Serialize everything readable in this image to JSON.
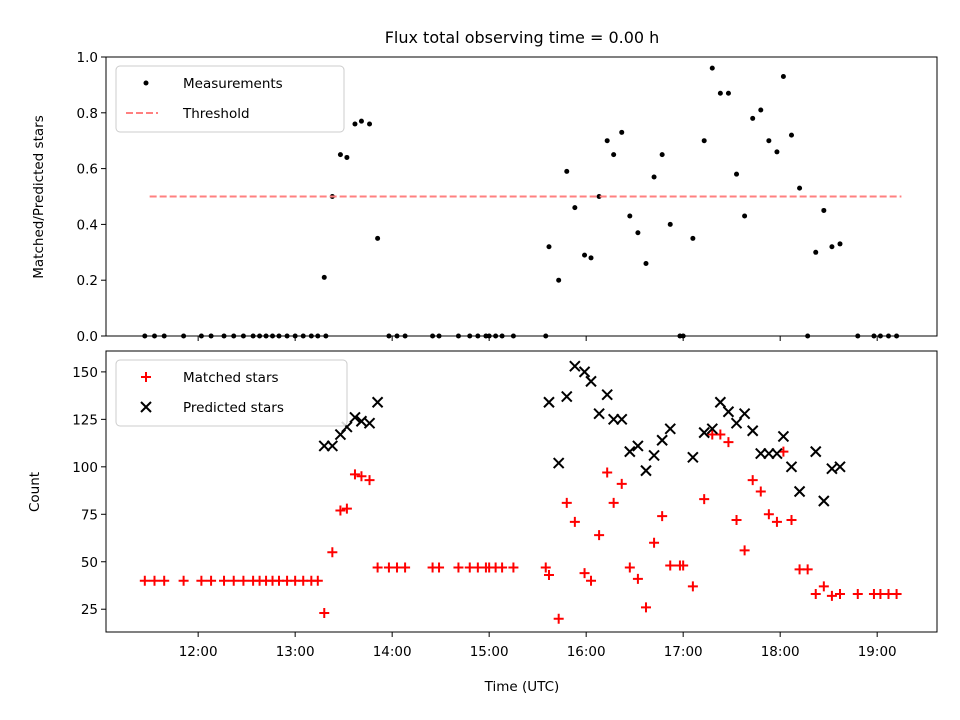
{
  "chart_data": [
    {
      "type": "scatter",
      "title": "Flux total observing time = 0.00 h",
      "xlabel": "",
      "ylabel": "Matched/Predicted stars",
      "xlim": [
        "11:03",
        "19:37"
      ],
      "ylim": [
        0,
        1.0
      ],
      "yticks": [
        0.0,
        0.2,
        0.4,
        0.6,
        0.8,
        1.0
      ],
      "ytick_labels": [
        "0.0",
        "0.2",
        "0.4",
        "0.6",
        "0.8",
        "1.0"
      ],
      "legend_position": "upper-left",
      "series": [
        {
          "name": "Measurements",
          "marker": "dot",
          "color": "#000000",
          "points": [
            [
              "11:27",
              0
            ],
            [
              "11:33",
              0
            ],
            [
              "11:39",
              0
            ],
            [
              "11:51",
              0
            ],
            [
              "12:02",
              0
            ],
            [
              "12:08",
              0
            ],
            [
              "12:16",
              0
            ],
            [
              "12:22",
              0
            ],
            [
              "12:28",
              0
            ],
            [
              "12:34",
              0
            ],
            [
              "12:38",
              0
            ],
            [
              "12:42",
              0
            ],
            [
              "12:46",
              0
            ],
            [
              "12:50",
              0
            ],
            [
              "12:55",
              0
            ],
            [
              "13:00",
              0
            ],
            [
              "13:05",
              0
            ],
            [
              "13:10",
              0
            ],
            [
              "13:14",
              0
            ],
            [
              "13:19",
              0
            ],
            [
              "13:18",
              0.21
            ],
            [
              "13:23",
              0.5
            ],
            [
              "13:28",
              0.65
            ],
            [
              "13:32",
              0.64
            ],
            [
              "13:37",
              0.76
            ],
            [
              "13:41",
              0.77
            ],
            [
              "13:46",
              0.76
            ],
            [
              "13:51",
              0.35
            ],
            [
              "13:58",
              0
            ],
            [
              "14:03",
              0
            ],
            [
              "14:08",
              0
            ],
            [
              "14:25",
              0
            ],
            [
              "14:29",
              0
            ],
            [
              "14:41",
              0
            ],
            [
              "14:48",
              0
            ],
            [
              "14:53",
              0
            ],
            [
              "14:58",
              0
            ],
            [
              "15:00",
              0
            ],
            [
              "15:04",
              0
            ],
            [
              "15:08",
              0
            ],
            [
              "15:15",
              0
            ],
            [
              "15:35",
              0
            ],
            [
              "15:37",
              0.32
            ],
            [
              "15:43",
              0.2
            ],
            [
              "15:48",
              0.59
            ],
            [
              "15:53",
              0.46
            ],
            [
              "15:59",
              0.29
            ],
            [
              "16:03",
              0.28
            ],
            [
              "16:08",
              0.5
            ],
            [
              "16:13",
              0.7
            ],
            [
              "16:17",
              0.65
            ],
            [
              "16:22",
              0.73
            ],
            [
              "16:27",
              0.43
            ],
            [
              "16:32",
              0.37
            ],
            [
              "16:37",
              0.26
            ],
            [
              "16:42",
              0.57
            ],
            [
              "16:47",
              0.65
            ],
            [
              "16:52",
              0.4
            ],
            [
              "16:58",
              0
            ],
            [
              "17:00",
              0
            ],
            [
              "17:06",
              0.35
            ],
            [
              "17:13",
              0.7
            ],
            [
              "17:18",
              0.96
            ],
            [
              "17:23",
              0.87
            ],
            [
              "17:28",
              0.87
            ],
            [
              "17:33",
              0.58
            ],
            [
              "17:38",
              0.43
            ],
            [
              "17:43",
              0.78
            ],
            [
              "17:48",
              0.81
            ],
            [
              "17:53",
              0.7
            ],
            [
              "17:58",
              0.66
            ],
            [
              "18:02",
              0.93
            ],
            [
              "18:07",
              0.72
            ],
            [
              "18:12",
              0.53
            ],
            [
              "18:17",
              0
            ],
            [
              "18:22",
              0.3
            ],
            [
              "18:27",
              0.45
            ],
            [
              "18:32",
              0.32
            ],
            [
              "18:37",
              0.33
            ],
            [
              "18:48",
              0
            ],
            [
              "18:58",
              0
            ],
            [
              "19:02",
              0
            ],
            [
              "19:07",
              0
            ],
            [
              "19:12",
              0
            ]
          ]
        },
        {
          "name": "Threshold",
          "marker": "dashed-line",
          "color": "#ff8080",
          "points": [
            [
              "11:30",
              0.5
            ],
            [
              "19:15",
              0.5
            ]
          ]
        }
      ]
    },
    {
      "type": "scatter",
      "title": "",
      "xlabel": "Time (UTC)",
      "ylabel": "Count",
      "xlim": [
        "11:03",
        "19:37"
      ],
      "ylim": [
        13,
        161
      ],
      "yticks": [
        25,
        50,
        75,
        100,
        125,
        150
      ],
      "ytick_labels": [
        "25",
        "50",
        "75",
        "100",
        "125",
        "150"
      ],
      "xticks": [
        "12:00",
        "13:00",
        "14:00",
        "15:00",
        "16:00",
        "17:00",
        "18:00",
        "19:00"
      ],
      "legend_position": "upper-left",
      "series": [
        {
          "name": "Matched stars",
          "marker": "plus",
          "color": "#ff0000",
          "points": [
            [
              "11:27",
              40
            ],
            [
              "11:33",
              40
            ],
            [
              "11:39",
              40
            ],
            [
              "11:51",
              40
            ],
            [
              "12:02",
              40
            ],
            [
              "12:08",
              40
            ],
            [
              "12:16",
              40
            ],
            [
              "12:22",
              40
            ],
            [
              "12:28",
              40
            ],
            [
              "12:34",
              40
            ],
            [
              "12:38",
              40
            ],
            [
              "12:42",
              40
            ],
            [
              "12:46",
              40
            ],
            [
              "12:50",
              40
            ],
            [
              "12:55",
              40
            ],
            [
              "13:00",
              40
            ],
            [
              "13:05",
              40
            ],
            [
              "13:10",
              40
            ],
            [
              "13:14",
              40
            ],
            [
              "13:18",
              23
            ],
            [
              "13:23",
              55
            ],
            [
              "13:28",
              77
            ],
            [
              "13:32",
              78
            ],
            [
              "13:37",
              96
            ],
            [
              "13:41",
              95
            ],
            [
              "13:46",
              93
            ],
            [
              "13:51",
              47
            ],
            [
              "13:58",
              47
            ],
            [
              "14:03",
              47
            ],
            [
              "14:08",
              47
            ],
            [
              "14:25",
              47
            ],
            [
              "14:29",
              47
            ],
            [
              "14:41",
              47
            ],
            [
              "14:48",
              47
            ],
            [
              "14:53",
              47
            ],
            [
              "14:58",
              47
            ],
            [
              "15:00",
              47
            ],
            [
              "15:04",
              47
            ],
            [
              "15:08",
              47
            ],
            [
              "15:15",
              47
            ],
            [
              "15:35",
              47
            ],
            [
              "15:37",
              43
            ],
            [
              "15:43",
              20
            ],
            [
              "15:48",
              81
            ],
            [
              "15:53",
              71
            ],
            [
              "15:59",
              44
            ],
            [
              "16:03",
              40
            ],
            [
              "16:08",
              64
            ],
            [
              "16:13",
              97
            ],
            [
              "16:17",
              81
            ],
            [
              "16:22",
              91
            ],
            [
              "16:27",
              47
            ],
            [
              "16:32",
              41
            ],
            [
              "16:37",
              26
            ],
            [
              "16:42",
              60
            ],
            [
              "16:47",
              74
            ],
            [
              "16:52",
              48
            ],
            [
              "16:58",
              48
            ],
            [
              "17:00",
              48
            ],
            [
              "17:06",
              37
            ],
            [
              "17:13",
              83
            ],
            [
              "17:18",
              117
            ],
            [
              "17:23",
              117
            ],
            [
              "17:28",
              113
            ],
            [
              "17:33",
              72
            ],
            [
              "17:38",
              56
            ],
            [
              "17:43",
              93
            ],
            [
              "17:48",
              87
            ],
            [
              "17:53",
              75
            ],
            [
              "17:58",
              71
            ],
            [
              "18:02",
              108
            ],
            [
              "18:07",
              72
            ],
            [
              "18:12",
              46
            ],
            [
              "18:17",
              46
            ],
            [
              "18:22",
              33
            ],
            [
              "18:27",
              37
            ],
            [
              "18:32",
              32
            ],
            [
              "18:37",
              33
            ],
            [
              "18:48",
              33
            ],
            [
              "18:58",
              33
            ],
            [
              "19:02",
              33
            ],
            [
              "19:07",
              33
            ],
            [
              "19:12",
              33
            ]
          ]
        },
        {
          "name": "Predicted stars",
          "marker": "x",
          "color": "#000000",
          "points": [
            [
              "13:18",
              111
            ],
            [
              "13:23",
              111
            ],
            [
              "13:28",
              117
            ],
            [
              "13:32",
              121
            ],
            [
              "13:37",
              126
            ],
            [
              "13:41",
              124
            ],
            [
              "13:46",
              123
            ],
            [
              "13:51",
              134
            ],
            [
              "15:37",
              134
            ],
            [
              "15:43",
              102
            ],
            [
              "15:48",
              137
            ],
            [
              "15:53",
              153
            ],
            [
              "15:59",
              150
            ],
            [
              "16:03",
              145
            ],
            [
              "16:08",
              128
            ],
            [
              "16:13",
              138
            ],
            [
              "16:17",
              125
            ],
            [
              "16:22",
              125
            ],
            [
              "16:27",
              108
            ],
            [
              "16:32",
              111
            ],
            [
              "16:37",
              98
            ],
            [
              "16:42",
              106
            ],
            [
              "16:47",
              114
            ],
            [
              "16:52",
              120
            ],
            [
              "17:06",
              105
            ],
            [
              "17:13",
              118
            ],
            [
              "17:18",
              120
            ],
            [
              "17:23",
              134
            ],
            [
              "17:28",
              129
            ],
            [
              "17:33",
              123
            ],
            [
              "17:38",
              128
            ],
            [
              "17:43",
              119
            ],
            [
              "17:48",
              107
            ],
            [
              "17:53",
              107
            ],
            [
              "17:58",
              107
            ],
            [
              "18:02",
              116
            ],
            [
              "18:07",
              100
            ],
            [
              "18:12",
              87
            ],
            [
              "18:22",
              108
            ],
            [
              "18:27",
              82
            ],
            [
              "18:32",
              99
            ],
            [
              "18:37",
              100
            ]
          ]
        }
      ]
    }
  ]
}
